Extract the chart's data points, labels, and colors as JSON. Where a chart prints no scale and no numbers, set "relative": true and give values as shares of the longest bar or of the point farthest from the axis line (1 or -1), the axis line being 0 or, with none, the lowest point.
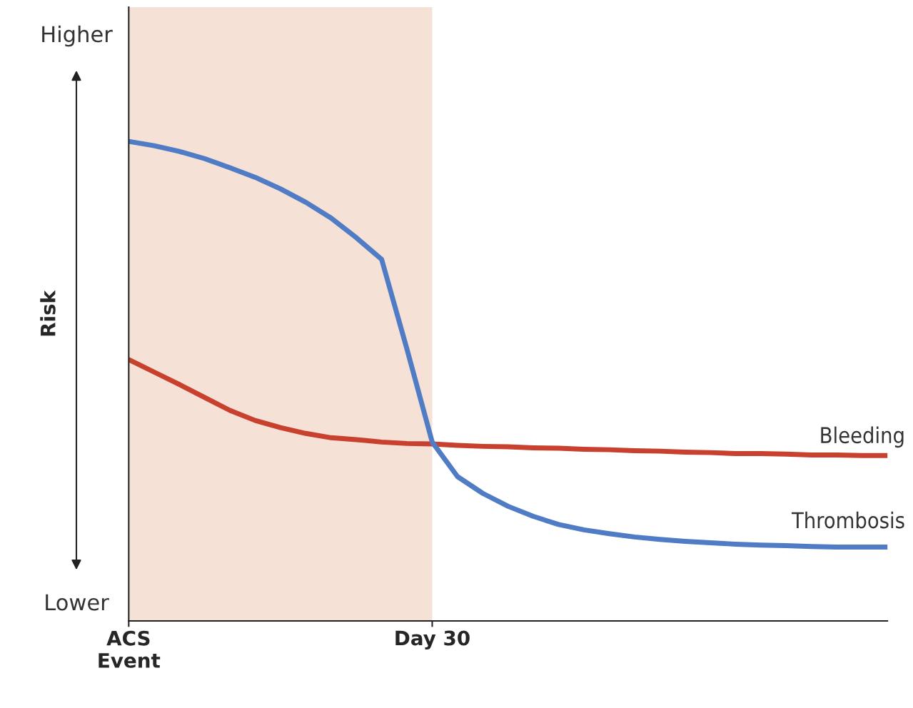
{
  "chart_data": {
    "type": "line",
    "relative": true,
    "ylabel": "Risk",
    "annotations": [
      "Higher",
      "Lower"
    ],
    "categories": [
      "ACS\nEvent",
      null,
      null,
      null,
      null,
      null,
      null,
      null,
      null,
      null,
      null,
      null,
      "Day 30",
      null,
      null,
      null,
      null,
      null,
      null,
      null,
      null,
      null,
      null,
      null,
      null,
      null,
      null,
      null,
      null,
      null,
      null
    ],
    "series": [
      {
        "name": "Bleeding",
        "color": "#c8412e",
        "values": [
          0.545,
          0.519,
          0.493,
          0.466,
          0.439,
          0.418,
          0.403,
          0.391,
          0.382,
          0.378,
          0.373,
          0.37,
          0.369,
          0.366,
          0.364,
          0.363,
          0.361,
          0.36,
          0.358,
          0.357,
          0.355,
          0.354,
          0.352,
          0.351,
          0.349,
          0.349,
          0.348,
          0.346,
          0.346,
          0.345,
          0.345
        ]
      },
      {
        "name": "Thrombosis",
        "color": "#4f7cc4",
        "values": [
          1.0,
          0.991,
          0.979,
          0.964,
          0.945,
          0.925,
          0.901,
          0.873,
          0.84,
          0.799,
          0.754,
          0.567,
          0.373,
          0.301,
          0.266,
          0.239,
          0.218,
          0.201,
          0.19,
          0.182,
          0.175,
          0.17,
          0.166,
          0.163,
          0.16,
          0.158,
          0.157,
          0.155,
          0.154,
          0.154,
          0.154
        ]
      }
    ],
    "bands": [
      {
        "axis": "x",
        "from": "ACS\nEvent",
        "to": "Day 30",
        "color": "#f6e1d7"
      }
    ],
    "legend": false
  }
}
